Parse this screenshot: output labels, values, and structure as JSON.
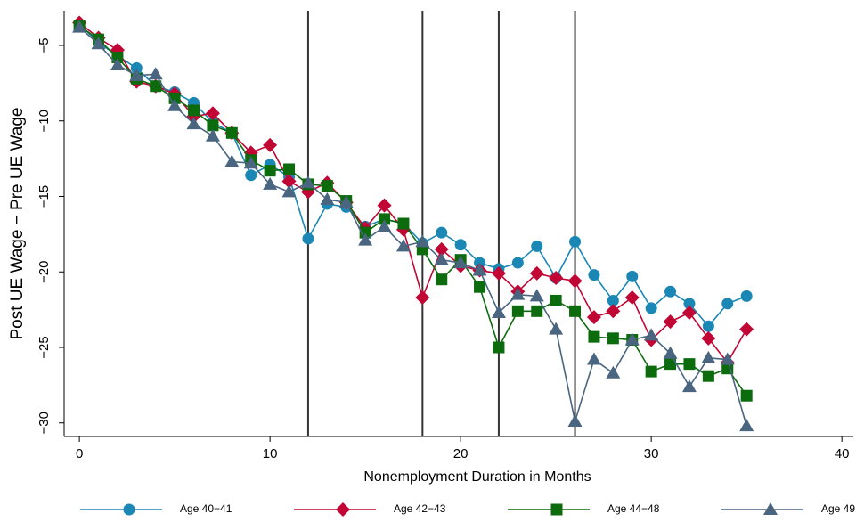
{
  "chart_data": {
    "type": "line",
    "y_label": "Post UE Wage − Pre UE Wage",
    "x_label": "Nonemployment Duration in Months",
    "x": [
      0,
      1,
      2,
      3,
      4,
      5,
      6,
      7,
      8,
      9,
      10,
      11,
      12,
      13,
      14,
      15,
      16,
      17,
      18,
      19,
      20,
      21,
      22,
      23,
      24,
      25,
      26,
      27,
      28,
      29,
      30,
      31,
      32,
      33,
      34,
      35
    ],
    "series": [
      {
        "name": "Age 40−41",
        "color": "#1a87b5",
        "marker": "circle",
        "values": [
          -3.6,
          -4.8,
          -5.7,
          -6.5,
          -7.7,
          -8.1,
          -8.8,
          -10.1,
          -10.8,
          -13.6,
          -12.9,
          -13.7,
          -17.8,
          -15.5,
          -15.7,
          -17.0,
          -16.5,
          -16.8,
          -18.1,
          -17.4,
          -18.2,
          -19.4,
          -19.8,
          -19.4,
          -18.3,
          -20.4,
          -18.0,
          -20.2,
          -21.9,
          -20.3,
          -22.4,
          -21.3,
          -22.1,
          -23.6,
          -22.1,
          -21.6
        ]
      },
      {
        "name": "Age 42−43",
        "color": "#c10534",
        "marker": "diamond",
        "values": [
          -3.5,
          -4.5,
          -5.3,
          -7.4,
          -7.7,
          -8.2,
          -9.7,
          -9.5,
          -10.8,
          -12.1,
          -11.6,
          -14.0,
          -14.7,
          -14.1,
          -15.4,
          -17.1,
          -15.6,
          -17.2,
          -21.7,
          -18.5,
          -19.6,
          -19.9,
          -20.1,
          -21.3,
          -20.1,
          -20.4,
          -20.6,
          -23.0,
          -22.6,
          -21.7,
          -24.5,
          -23.3,
          -22.7,
          -24.4,
          -26.0,
          -23.8
        ]
      },
      {
        "name": "Age 44−48",
        "color": "#0c6b0c",
        "marker": "square",
        "values": [
          -3.7,
          -4.6,
          -5.8,
          -7.2,
          -7.7,
          -8.5,
          -9.3,
          -10.3,
          -10.8,
          -12.6,
          -13.3,
          -13.2,
          -14.2,
          -14.3,
          -15.3,
          -17.4,
          -16.5,
          -16.8,
          -18.5,
          -20.5,
          -19.2,
          -21.0,
          -25.0,
          -22.6,
          -22.6,
          -21.9,
          -22.6,
          -24.3,
          -24.4,
          -24.5,
          -26.6,
          -26.1,
          -26.1,
          -26.9,
          -26.4,
          -28.2
        ]
      },
      {
        "name": "Age 49",
        "color": "#4a6580",
        "marker": "triangle",
        "values": [
          -3.8,
          -4.9,
          -6.3,
          -7.0,
          -6.9,
          -9.0,
          -10.2,
          -11.0,
          -12.7,
          -12.8,
          -14.2,
          -14.7,
          -14.1,
          -15.2,
          -15.4,
          -17.9,
          -17.0,
          -18.3,
          -18.0,
          -19.2,
          -19.4,
          -19.9,
          -22.7,
          -21.5,
          -21.6,
          -23.8,
          -29.9,
          -25.8,
          -26.7,
          -24.5,
          -24.2,
          -25.4,
          -27.6,
          -25.7,
          -25.8,
          -30.2
        ]
      }
    ],
    "xlim": [
      -0.8,
      40.6
    ],
    "xticks": [
      0,
      10,
      20,
      30,
      40
    ],
    "ylim": [
      -30.9,
      -2.7
    ],
    "yticks": [
      {
        "value": -5,
        "label": "−5"
      },
      {
        "value": -10,
        "label": "−10"
      },
      {
        "value": -15,
        "label": "−15"
      },
      {
        "value": -20,
        "label": "−20"
      },
      {
        "value": -25,
        "label": "−25"
      },
      {
        "value": -30,
        "label": "−30"
      }
    ],
    "vlines": [
      12,
      18,
      22,
      26
    ],
    "vline_color": "#333333"
  }
}
